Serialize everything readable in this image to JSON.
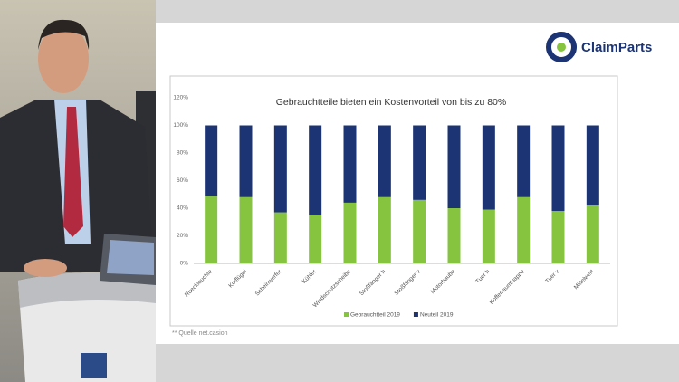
{
  "logo": "ClaimParts",
  "source": "** Quelle net.casion",
  "chart_data": {
    "type": "bar",
    "stacked": true,
    "title": "Gebrauchtteile bieten ein Kostenvorteil von bis zu 80%",
    "categories": [
      "Rueckleuchte",
      "Kotflügel",
      "Scheinwerfer",
      "Kühler",
      "Windschutzscheibe",
      "Stoßfänger h",
      "Stoßfänger v",
      "Motorhaube",
      "Tuer h",
      "Kofferraumklappe",
      "Tuer v",
      "Mittelwert"
    ],
    "series": [
      {
        "name": "Gebrauchtteil 2019",
        "color": "#86c440",
        "values": [
          49,
          48,
          37,
          35,
          44,
          48,
          46,
          40,
          39,
          48,
          38,
          42
        ]
      },
      {
        "name": "Neuteil 2019",
        "color": "#1c3474",
        "values": [
          51,
          52,
          63,
          65,
          56,
          52,
          54,
          60,
          61,
          52,
          62,
          58
        ]
      }
    ],
    "ylim": [
      0,
      120
    ],
    "yticks": [
      {
        "value": 0,
        "label": "0%"
      },
      {
        "value": 20,
        "label": "20%"
      },
      {
        "value": 40,
        "label": "40%"
      },
      {
        "value": 60,
        "label": "60%"
      },
      {
        "value": 80,
        "label": "80%"
      },
      {
        "value": 100,
        "label": "100%"
      },
      {
        "value": 120,
        "label": "120%"
      }
    ],
    "grid": false,
    "legend": "bottom"
  }
}
